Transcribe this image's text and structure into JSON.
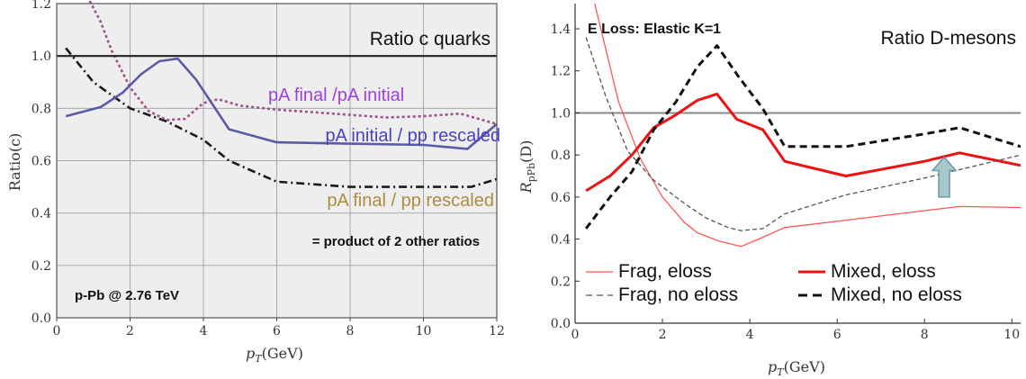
{
  "chart_data": [
    {
      "type": "line",
      "title": "Ratio c quarks",
      "xlabel_base": "p",
      "xlabel_sub": "T",
      "xlabel_rest": "(GeV)",
      "ylabel": "Ratio(c)",
      "xlim": [
        0,
        12
      ],
      "ylim": [
        0,
        1.2
      ],
      "xticks": [
        0,
        2,
        4,
        6,
        8,
        10,
        12
      ],
      "yticks": [
        0,
        0.2,
        0.4,
        0.6,
        0.8,
        1.0,
        1.2
      ],
      "xtick_labels": [
        "0",
        "2",
        "4",
        "6",
        "8",
        "10",
        "12"
      ],
      "ytick_labels": [
        "0.0",
        "0.2",
        "0.4",
        "0.6",
        "0.8",
        "1.0",
        "1.2"
      ],
      "grid": true,
      "reference_line": 1.0,
      "annotations": {
        "note": "= product of 2 other ratios",
        "system": "p-Pb @ 2.76 TeV"
      },
      "series": [
        {
          "name": "pA final /pA initial",
          "color": "#a0508a",
          "label_color": "#a040e0",
          "dash": "dotted",
          "x": [
            0.9,
            1.2,
            1.5,
            2.0,
            2.5,
            3.0,
            3.5,
            4.0,
            4.4,
            5.0,
            6.0,
            7.0,
            8.0,
            9.0,
            10.0,
            11.0,
            12.0
          ],
          "y": [
            1.21,
            1.13,
            1.02,
            0.88,
            0.79,
            0.755,
            0.76,
            0.82,
            0.835,
            0.81,
            0.795,
            0.785,
            0.775,
            0.765,
            0.77,
            0.78,
            0.74
          ]
        },
        {
          "name": "pA initial / pp rescaled",
          "color": "#5a5aa8",
          "label_color": "#4a40c8",
          "dash": "solid",
          "x": [
            0.25,
            1.2,
            1.8,
            2.3,
            2.8,
            3.3,
            3.8,
            4.7,
            6.0,
            8.0,
            10.0,
            11.2,
            12.0
          ],
          "y": [
            0.77,
            0.805,
            0.86,
            0.93,
            0.98,
            0.99,
            0.91,
            0.72,
            0.67,
            0.665,
            0.66,
            0.645,
            0.74
          ]
        },
        {
          "name": "pA final / pp rescaled",
          "color": "#1a1a1a",
          "label_color": "#b08c40",
          "dash": "dashdot",
          "x": [
            0.25,
            1.0,
            2.0,
            3.0,
            4.0,
            4.7,
            6.0,
            8.0,
            10.0,
            11.3,
            12.0
          ],
          "y": [
            1.03,
            0.9,
            0.8,
            0.75,
            0.68,
            0.6,
            0.52,
            0.5,
            0.5,
            0.5,
            0.53
          ]
        }
      ]
    },
    {
      "type": "line",
      "title": "Ratio D-mesons",
      "subtitle": "E Loss: Elastic K=1",
      "xlabel_base": "p",
      "xlabel_sub": "T",
      "xlabel_rest": "(GeV)",
      "ylabel_base": "R",
      "ylabel_sub": "pPb",
      "ylabel_rest": "(D)",
      "xlim": [
        0,
        10.2
      ],
      "ylim": [
        0,
        1.52
      ],
      "xticks": [
        0,
        2,
        4,
        6,
        8,
        10
      ],
      "yticks": [
        0,
        0.2,
        0.4,
        0.6,
        0.8,
        1.0,
        1.2,
        1.4
      ],
      "xtick_labels": [
        "0",
        "2",
        "4",
        "6",
        "8",
        "10"
      ],
      "ytick_labels": [
        "0.0",
        "0.2",
        "0.4",
        "0.6",
        "0.8",
        "1.0",
        "1.2",
        "1.4"
      ],
      "grid": false,
      "reference_line": 1.0,
      "legend_placement": "bottom",
      "series": [
        {
          "name": "Frag, eloss",
          "color": "#ff5555",
          "width": "thin",
          "dash": "solid",
          "x": [
            0.45,
            1.0,
            1.5,
            2.0,
            2.5,
            2.8,
            3.3,
            3.8,
            4.2,
            4.8,
            6.2,
            8.0,
            8.8,
            10.2
          ],
          "y": [
            1.52,
            1.05,
            0.78,
            0.6,
            0.48,
            0.43,
            0.39,
            0.365,
            0.4,
            0.455,
            0.49,
            0.535,
            0.555,
            0.55
          ]
        },
        {
          "name": "Mixed, eloss",
          "color": "#ee1111",
          "width": "thick",
          "dash": "solid",
          "x": [
            0.25,
            0.8,
            1.3,
            1.8,
            2.3,
            2.8,
            3.25,
            3.7,
            4.3,
            4.8,
            6.2,
            8.0,
            8.8,
            10.2
          ],
          "y": [
            0.63,
            0.7,
            0.8,
            0.93,
            0.99,
            1.06,
            1.09,
            0.97,
            0.92,
            0.77,
            0.7,
            0.77,
            0.81,
            0.75
          ]
        },
        {
          "name": "Frag, no eloss",
          "color": "#555555",
          "width": "thin",
          "dash": "dashed",
          "x": [
            0.25,
            0.7,
            1.2,
            1.8,
            2.5,
            3.0,
            3.5,
            3.8,
            4.3,
            4.8,
            6.2,
            8.0,
            10.2
          ],
          "y": [
            1.36,
            1.08,
            0.82,
            0.68,
            0.57,
            0.5,
            0.455,
            0.44,
            0.45,
            0.52,
            0.61,
            0.69,
            0.8
          ]
        },
        {
          "name": "Mixed, no eloss",
          "color": "#111111",
          "width": "thick",
          "dash": "dashed",
          "x": [
            0.25,
            0.8,
            1.3,
            1.8,
            2.3,
            2.8,
            3.25,
            3.75,
            4.3,
            4.8,
            6.2,
            8.0,
            8.8,
            10.2
          ],
          "y": [
            0.45,
            0.6,
            0.72,
            0.92,
            1.05,
            1.22,
            1.32,
            1.17,
            1.02,
            0.84,
            0.84,
            0.9,
            0.93,
            0.84
          ]
        }
      ],
      "arrow": {
        "x": 8.45,
        "y_from": 0.6,
        "y_to": 0.79,
        "fill": "#a6c7cc",
        "stroke": "#6b9aa3"
      }
    }
  ]
}
